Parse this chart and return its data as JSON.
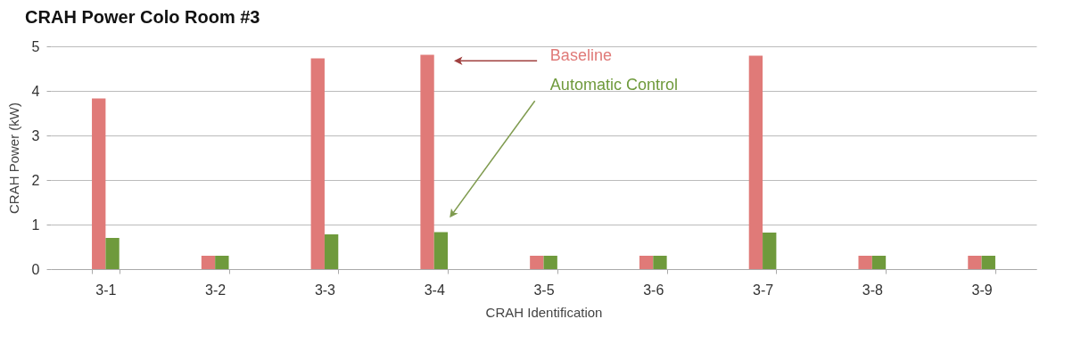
{
  "chart_data": {
    "type": "bar",
    "title": "CRAH Power Colo Room #3",
    "xlabel": "CRAH Identification",
    "ylabel": "CRAH Power (kW)",
    "categories": [
      "3-1",
      "3-2",
      "3-3",
      "3-4",
      "3-5",
      "3-6",
      "3-7",
      "3-8",
      "3-9"
    ],
    "series": [
      {
        "name": "Baseline",
        "color": "#e07a78",
        "values": [
          3.83,
          0.3,
          4.73,
          4.81,
          0.3,
          0.3,
          4.79,
          0.3,
          0.3
        ]
      },
      {
        "name": "Automatic Control",
        "color": "#6f9a3c",
        "values": [
          0.7,
          0.3,
          0.78,
          0.83,
          0.3,
          0.3,
          0.82,
          0.3,
          0.3
        ]
      }
    ],
    "ylim": [
      0,
      5
    ],
    "yticks": [
      0,
      1,
      2,
      3,
      4,
      5
    ],
    "grid": "y"
  }
}
